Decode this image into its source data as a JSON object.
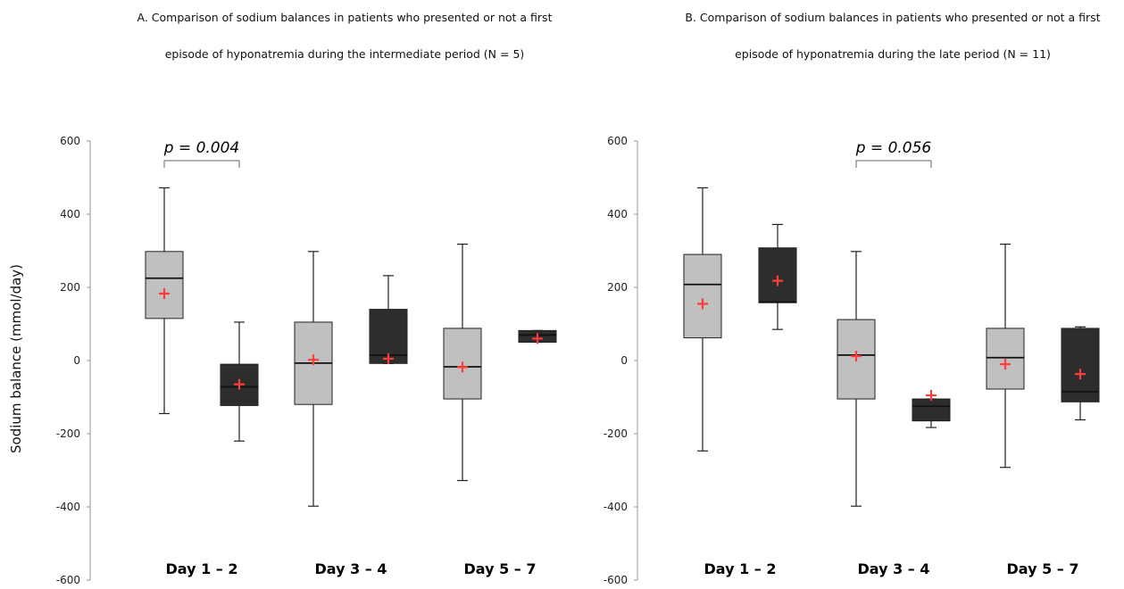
{
  "titles": {
    "a_line1": "A. Comparison of sodium balances in patients who presented or not a first",
    "a_line2": "episode of hyponatremia during the intermediate period (N = 5)",
    "b_line1": "B. Comparison of sodium balances in patients who presented or not a first",
    "b_line2": "episode of hyponatremia during the late period (N = 11)"
  },
  "ylabel": "Sodium balance (mmol/day)",
  "colors": {
    "light_box": "#c0c0c0",
    "dark_box": "#2d2d2d",
    "mean_marker": "#ff3b3b",
    "line": "#222222"
  },
  "chart_data": [
    {
      "type": "boxplot",
      "title": "A. Comparison of sodium balances in patients who presented or not a first episode of hyponatremia during the intermediate period (N = 5)",
      "ylabel": "Sodium balance (mmol/day)",
      "ylim": [
        -600,
        600
      ],
      "yticks": [
        "600",
        "400",
        "200",
        "0",
        "-200",
        "-400",
        "-600"
      ],
      "categories": [
        "Day 1 – 2",
        "Day 3 – 4",
        "Day 5 – 7"
      ],
      "grid": false,
      "boxes": [
        {
          "category": 0,
          "color": "light",
          "whisker_low": -145,
          "q1": 115,
          "median": 225,
          "q3": 298,
          "whisker_high": 472,
          "mean": 183
        },
        {
          "category": 0,
          "color": "dark",
          "whisker_low": -220,
          "q1": -123,
          "median": -72,
          "q3": -10,
          "whisker_high": 105,
          "mean": -65
        },
        {
          "category": 1,
          "color": "light",
          "whisker_low": -398,
          "q1": -120,
          "median": -7,
          "q3": 105,
          "whisker_high": 298,
          "mean": 2
        },
        {
          "category": 1,
          "color": "dark",
          "whisker_low": -8,
          "q1": -8,
          "median": 15,
          "q3": 140,
          "whisker_high": 232,
          "mean": 5
        },
        {
          "category": 2,
          "color": "light",
          "whisker_low": -328,
          "q1": -105,
          "median": -17,
          "q3": 88,
          "whisker_high": 318,
          "mean": -18
        },
        {
          "category": 2,
          "color": "dark",
          "whisker_low": 50,
          "q1": 50,
          "median": 70,
          "q3": 82,
          "whisker_high": 82,
          "mean": 60
        }
      ],
      "annotation": {
        "text": "p = 0.004",
        "category": 0
      }
    },
    {
      "type": "boxplot",
      "title": "B. Comparison of sodium balances in patients who presented or not a first episode of hyponatremia during the late period (N = 11)",
      "ylim": [
        -600,
        600
      ],
      "yticks": [
        "600",
        "400",
        "200",
        "0",
        "-200",
        "-400",
        "-600"
      ],
      "categories": [
        "Day 1 – 2",
        "Day 3 – 4",
        "Day 5 – 7"
      ],
      "grid": false,
      "boxes": [
        {
          "category": 0,
          "color": "light",
          "whisker_low": -247,
          "q1": 62,
          "median": 208,
          "q3": 290,
          "whisker_high": 472,
          "mean": 155
        },
        {
          "category": 0,
          "color": "dark",
          "whisker_low": 85,
          "q1": 158,
          "median": 160,
          "q3": 308,
          "whisker_high": 372,
          "mean": 218
        },
        {
          "category": 1,
          "color": "light",
          "whisker_low": -398,
          "q1": -105,
          "median": 15,
          "q3": 112,
          "whisker_high": 298,
          "mean": 12
        },
        {
          "category": 1,
          "color": "dark",
          "whisker_low": -183,
          "q1": -165,
          "median": -125,
          "q3": -105,
          "whisker_high": -105,
          "mean": -95
        },
        {
          "category": 2,
          "color": "light",
          "whisker_low": -292,
          "q1": -78,
          "median": 8,
          "q3": 88,
          "whisker_high": 318,
          "mean": -10
        },
        {
          "category": 2,
          "color": "dark",
          "whisker_low": -162,
          "q1": -113,
          "median": -85,
          "q3": 88,
          "whisker_high": 92,
          "mean": -37
        }
      ],
      "annotation": {
        "text": "p = 0.056",
        "category": 1
      }
    }
  ]
}
